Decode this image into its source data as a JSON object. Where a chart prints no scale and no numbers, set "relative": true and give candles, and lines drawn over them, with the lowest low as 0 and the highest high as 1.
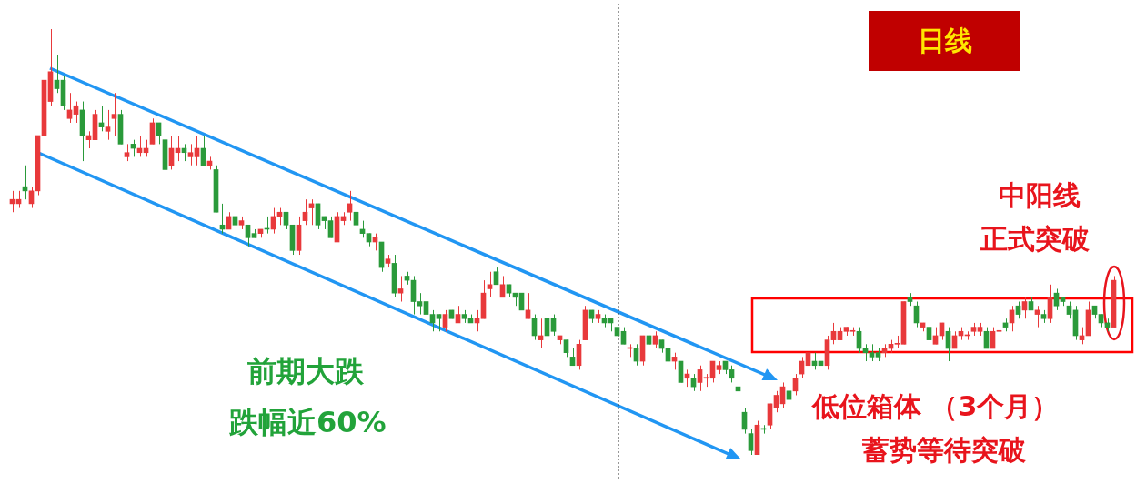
{
  "chart_data": {
    "type": "candlestick",
    "relative": true,
    "categories": [
      null,
      null,
      null,
      null,
      null,
      null,
      null,
      null,
      null,
      null,
      null,
      null,
      null,
      null,
      null,
      null,
      null,
      null,
      null,
      null,
      null,
      null,
      null,
      null,
      null,
      null,
      null,
      null,
      null,
      null,
      null,
      null,
      null,
      null,
      null,
      null,
      null,
      null,
      null,
      null,
      null,
      null,
      null,
      null,
      null,
      null,
      null,
      null,
      null,
      null,
      null,
      null,
      null,
      null,
      null,
      null,
      null,
      null,
      null,
      null,
      null,
      null,
      null,
      null,
      null,
      null,
      null,
      null,
      null,
      null,
      null,
      null,
      null,
      null,
      null,
      null,
      null,
      null,
      null,
      null,
      null,
      null,
      null,
      null,
      null,
      null,
      null,
      null,
      null,
      null,
      null,
      null,
      null,
      null,
      null,
      null,
      null,
      null,
      null,
      null,
      null,
      null,
      null,
      null,
      null,
      null,
      null,
      null,
      null,
      null,
      null,
      null,
      null,
      null,
      null,
      null,
      null,
      null,
      null,
      null,
      null,
      null,
      null,
      null,
      null,
      null,
      null,
      null,
      null,
      null,
      null,
      null,
      null,
      null,
      null,
      null,
      null,
      null,
      null,
      null,
      null,
      null,
      null,
      null,
      null,
      null,
      null,
      null,
      null,
      null,
      null,
      null,
      null,
      null,
      null,
      null,
      null,
      null,
      null,
      null,
      null,
      null,
      null,
      null,
      null,
      null,
      null,
      null,
      null,
      null,
      null,
      null,
      null,
      null
    ],
    "ohlc": [
      [
        0.59,
        0.62,
        0.57,
        0.6
      ],
      [
        0.59,
        0.62,
        0.58,
        0.6
      ],
      [
        0.63,
        0.68,
        0.6,
        0.62
      ],
      [
        0.59,
        0.63,
        0.58,
        0.62
      ],
      [
        0.62,
        0.75,
        0.61,
        0.75
      ],
      [
        0.75,
        0.89,
        0.74,
        0.88
      ],
      [
        0.83,
        1.0,
        0.82,
        0.9
      ],
      [
        0.88,
        0.94,
        0.85,
        0.86
      ],
      [
        0.88,
        0.89,
        0.81,
        0.82
      ],
      [
        0.79,
        0.85,
        0.78,
        0.81
      ],
      [
        0.8,
        0.83,
        0.78,
        0.82
      ],
      [
        0.81,
        0.83,
        0.69,
        0.75
      ],
      [
        0.74,
        0.76,
        0.72,
        0.75
      ],
      [
        0.74,
        0.81,
        0.74,
        0.8
      ],
      [
        0.78,
        0.82,
        0.76,
        0.77
      ],
      [
        0.76,
        0.81,
        0.74,
        0.77
      ],
      [
        0.79,
        0.85,
        0.75,
        0.8
      ],
      [
        0.8,
        0.81,
        0.73,
        0.73
      ],
      [
        0.7,
        0.73,
        0.69,
        0.71
      ],
      [
        0.73,
        0.74,
        0.7,
        0.72
      ],
      [
        0.71,
        0.75,
        0.7,
        0.72
      ],
      [
        0.71,
        0.74,
        0.7,
        0.72
      ],
      [
        0.73,
        0.79,
        0.73,
        0.78
      ],
      [
        0.78,
        0.78,
        0.73,
        0.75
      ],
      [
        0.74,
        0.74,
        0.65,
        0.67
      ],
      [
        0.68,
        0.75,
        0.67,
        0.72
      ],
      [
        0.71,
        0.75,
        0.69,
        0.72
      ],
      [
        0.72,
        0.73,
        0.69,
        0.71
      ],
      [
        0.7,
        0.73,
        0.68,
        0.71
      ],
      [
        0.7,
        0.75,
        0.68,
        0.72
      ],
      [
        0.72,
        0.75,
        0.68,
        0.68
      ],
      [
        0.68,
        0.7,
        0.67,
        0.69
      ],
      [
        0.67,
        0.68,
        0.57,
        0.57
      ],
      [
        0.54,
        0.59,
        0.52,
        0.53
      ],
      [
        0.53,
        0.57,
        0.53,
        0.56
      ],
      [
        0.56,
        0.57,
        0.53,
        0.54
      ],
      [
        0.54,
        0.56,
        0.53,
        0.55
      ],
      [
        0.54,
        0.54,
        0.49,
        0.51
      ],
      [
        0.52,
        0.53,
        0.51,
        0.51
      ],
      [
        0.52,
        0.53,
        0.51,
        0.53
      ],
      [
        0.53,
        0.56,
        0.52,
        0.53
      ],
      [
        0.53,
        0.58,
        0.52,
        0.56
      ],
      [
        0.56,
        0.58,
        0.54,
        0.57
      ],
      [
        0.57,
        0.57,
        0.53,
        0.54
      ],
      [
        0.54,
        0.54,
        0.47,
        0.48
      ],
      [
        0.48,
        0.56,
        0.47,
        0.54
      ],
      [
        0.55,
        0.6,
        0.54,
        0.57
      ],
      [
        0.58,
        0.6,
        0.54,
        0.59
      ],
      [
        0.59,
        0.59,
        0.53,
        0.54
      ],
      [
        0.56,
        0.56,
        0.53,
        0.55
      ],
      [
        0.55,
        0.56,
        0.51,
        0.51
      ],
      [
        0.5,
        0.57,
        0.5,
        0.56
      ],
      [
        0.55,
        0.57,
        0.54,
        0.56
      ],
      [
        0.57,
        0.62,
        0.55,
        0.59
      ],
      [
        0.57,
        0.58,
        0.53,
        0.54
      ],
      [
        0.53,
        0.55,
        0.51,
        0.52
      ],
      [
        0.52,
        0.52,
        0.49,
        0.5
      ],
      [
        0.5,
        0.52,
        0.48,
        0.51
      ],
      [
        0.5,
        0.5,
        0.43,
        0.44
      ],
      [
        0.45,
        0.47,
        0.44,
        0.46
      ],
      [
        0.45,
        0.47,
        0.37,
        0.38
      ],
      [
        0.38,
        0.42,
        0.36,
        0.39
      ],
      [
        0.42,
        0.43,
        0.4,
        0.41
      ],
      [
        0.41,
        0.42,
        0.33,
        0.36
      ],
      [
        0.36,
        0.38,
        0.33,
        0.35
      ],
      [
        0.36,
        0.36,
        0.32,
        0.33
      ],
      [
        0.33,
        0.34,
        0.29,
        0.31
      ],
      [
        0.33,
        0.33,
        0.29,
        0.32
      ],
      [
        0.3,
        0.34,
        0.29,
        0.33
      ],
      [
        0.34,
        0.34,
        0.32,
        0.32
      ],
      [
        0.31,
        0.35,
        0.31,
        0.33
      ],
      [
        0.33,
        0.34,
        0.31,
        0.32
      ],
      [
        0.32,
        0.33,
        0.31,
        0.31
      ],
      [
        0.31,
        0.34,
        0.29,
        0.32
      ],
      [
        0.32,
        0.41,
        0.32,
        0.38
      ],
      [
        0.39,
        0.43,
        0.37,
        0.4
      ],
      [
        0.43,
        0.44,
        0.4,
        0.4
      ],
      [
        0.37,
        0.42,
        0.37,
        0.4
      ],
      [
        0.4,
        0.4,
        0.37,
        0.38
      ],
      [
        0.38,
        0.38,
        0.35,
        0.37
      ],
      [
        0.38,
        0.38,
        0.34,
        0.34
      ],
      [
        0.32,
        0.38,
        0.32,
        0.34
      ],
      [
        0.32,
        0.33,
        0.27,
        0.28
      ],
      [
        0.27,
        0.32,
        0.25,
        0.28
      ],
      [
        0.32,
        0.33,
        0.25,
        0.28
      ],
      [
        0.32,
        0.33,
        0.28,
        0.29
      ],
      [
        0.27,
        0.28,
        0.26,
        0.28
      ],
      [
        0.27,
        0.27,
        0.23,
        0.24
      ],
      [
        0.23,
        0.25,
        0.21,
        0.21
      ],
      [
        0.21,
        0.27,
        0.2,
        0.26
      ],
      [
        0.27,
        0.35,
        0.27,
        0.34
      ],
      [
        0.34,
        0.34,
        0.31,
        0.32
      ],
      [
        0.32,
        0.34,
        0.31,
        0.33
      ],
      [
        0.32,
        0.33,
        0.3,
        0.31
      ],
      [
        0.32,
        0.32,
        0.29,
        0.31
      ],
      [
        0.3,
        0.31,
        0.27,
        0.28
      ],
      [
        0.29,
        0.3,
        0.26,
        0.26
      ],
      [
        0.25,
        0.26,
        0.23,
        0.25
      ],
      [
        0.25,
        0.26,
        0.21,
        0.22
      ],
      [
        0.22,
        0.28,
        0.21,
        0.28
      ],
      [
        0.28,
        0.28,
        0.26,
        0.26
      ],
      [
        0.26,
        0.29,
        0.25,
        0.28
      ],
      [
        0.27,
        0.27,
        0.24,
        0.25
      ],
      [
        0.25,
        0.25,
        0.22,
        0.22
      ],
      [
        0.22,
        0.24,
        0.2,
        0.23
      ],
      [
        0.22,
        0.22,
        0.17,
        0.17
      ],
      [
        0.18,
        0.2,
        0.16,
        0.19
      ],
      [
        0.18,
        0.19,
        0.15,
        0.16
      ],
      [
        0.17,
        0.21,
        0.15,
        0.2
      ],
      [
        0.18,
        0.19,
        0.16,
        0.18
      ],
      [
        0.18,
        0.22,
        0.17,
        0.22
      ],
      [
        0.2,
        0.22,
        0.19,
        0.21
      ],
      [
        0.22,
        0.22,
        0.19,
        0.2
      ],
      [
        0.2,
        0.21,
        0.17,
        0.18
      ],
      [
        0.16,
        0.18,
        0.13,
        0.15
      ],
      [
        0.1,
        0.11,
        0.05,
        0.06
      ],
      [
        0.05,
        0.06,
        0.0,
        0.01
      ],
      [
        0.0,
        0.08,
        0.0,
        0.07
      ],
      [
        0.06,
        0.07,
        0.05,
        0.06
      ],
      [
        0.07,
        0.12,
        0.06,
        0.12
      ],
      [
        0.11,
        0.15,
        0.1,
        0.14
      ],
      [
        0.12,
        0.17,
        0.11,
        0.16
      ],
      [
        0.15,
        0.16,
        0.12,
        0.13
      ],
      [
        0.15,
        0.19,
        0.14,
        0.18
      ],
      [
        0.19,
        0.23,
        0.18,
        0.22
      ],
      [
        0.21,
        0.25,
        0.2,
        0.24
      ],
      [
        0.22,
        0.24,
        0.2,
        0.21
      ],
      [
        0.22,
        0.22,
        0.21,
        0.21
      ],
      [
        0.21,
        0.28,
        0.2,
        0.27
      ],
      [
        0.27,
        0.31,
        0.26,
        0.29
      ],
      [
        0.27,
        0.3,
        0.27,
        0.29
      ],
      [
        0.29,
        0.3,
        0.28,
        0.3
      ],
      [
        0.29,
        0.3,
        0.28,
        0.29
      ],
      [
        0.29,
        0.3,
        0.24,
        0.25
      ],
      [
        0.25,
        0.26,
        0.22,
        0.24
      ],
      [
        0.24,
        0.26,
        0.22,
        0.23
      ],
      [
        0.24,
        0.25,
        0.22,
        0.23
      ],
      [
        0.24,
        0.26,
        0.23,
        0.25
      ],
      [
        0.25,
        0.27,
        0.24,
        0.26
      ],
      [
        0.26,
        0.28,
        0.25,
        0.26
      ],
      [
        0.26,
        0.36,
        0.26,
        0.36
      ],
      [
        0.37,
        0.38,
        0.35,
        0.36
      ],
      [
        0.35,
        0.36,
        0.3,
        0.31
      ],
      [
        0.3,
        0.31,
        0.29,
        0.31
      ],
      [
        0.3,
        0.31,
        0.27,
        0.27
      ],
      [
        0.26,
        0.3,
        0.26,
        0.28
      ],
      [
        0.28,
        0.31,
        0.27,
        0.31
      ],
      [
        0.29,
        0.3,
        0.22,
        0.25
      ],
      [
        0.25,
        0.29,
        0.25,
        0.28
      ],
      [
        0.28,
        0.3,
        0.27,
        0.29
      ],
      [
        0.28,
        0.29,
        0.27,
        0.28
      ],
      [
        0.29,
        0.31,
        0.28,
        0.3
      ],
      [
        0.29,
        0.31,
        0.28,
        0.3
      ],
      [
        0.29,
        0.3,
        0.25,
        0.25
      ],
      [
        0.25,
        0.3,
        0.25,
        0.29
      ],
      [
        0.29,
        0.31,
        0.27,
        0.29
      ],
      [
        0.31,
        0.32,
        0.29,
        0.3
      ],
      [
        0.31,
        0.35,
        0.29,
        0.34
      ],
      [
        0.35,
        0.36,
        0.32,
        0.33
      ],
      [
        0.34,
        0.37,
        0.32,
        0.36
      ],
      [
        0.36,
        0.37,
        0.34,
        0.34
      ],
      [
        0.33,
        0.35,
        0.3,
        0.34
      ],
      [
        0.33,
        0.34,
        0.31,
        0.32
      ],
      [
        0.32,
        0.4,
        0.31,
        0.37
      ],
      [
        0.38,
        0.39,
        0.34,
        0.35
      ],
      [
        0.37,
        0.37,
        0.35,
        0.36
      ],
      [
        0.35,
        0.36,
        0.32,
        0.33
      ],
      [
        0.34,
        0.35,
        0.27,
        0.28
      ],
      [
        0.27,
        0.3,
        0.26,
        0.28
      ],
      [
        0.28,
        0.36,
        0.28,
        0.34
      ],
      [
        0.35,
        0.35,
        0.32,
        0.33
      ],
      [
        0.33,
        0.33,
        0.3,
        0.31
      ],
      [
        0.31,
        0.32,
        0.29,
        0.3
      ],
      [
        0.3,
        0.42,
        0.3,
        0.41
      ]
    ],
    "colors": [
      "#e8393b",
      "#e8393b",
      "#2a9a3a",
      "#e8393b",
      "#e8393b",
      "#e8393b",
      "#e8393b",
      "#2a9a3a",
      "#2a9a3a",
      "#e8393b",
      "#e8393b",
      "#2a9a3a",
      "#e8393b",
      "#e8393b",
      "#2a9a3a",
      "#e8393b",
      "#e8393b",
      "#2a9a3a",
      "#e8393b",
      "#2a9a3a",
      "#e8393b",
      "#e8393b",
      "#e8393b",
      "#2a9a3a",
      "#2a9a3a",
      "#e8393b",
      "#e8393b",
      "#2a9a3a",
      "#e8393b",
      "#e8393b",
      "#2a9a3a",
      "#e8393b",
      "#2a9a3a",
      "#2a9a3a",
      "#e8393b",
      "#2a9a3a",
      "#e8393b",
      "#2a9a3a",
      "#2a9a3a",
      "#e8393b",
      "#2a9a3a",
      "#e8393b",
      "#e8393b",
      "#2a9a3a",
      "#2a9a3a",
      "#e8393b",
      "#e8393b",
      "#e8393b",
      "#2a9a3a",
      "#2a9a3a",
      "#2a9a3a",
      "#e8393b",
      "#e8393b",
      "#e8393b",
      "#2a9a3a",
      "#2a9a3a",
      "#2a9a3a",
      "#e8393b",
      "#2a9a3a",
      "#e8393b",
      "#2a9a3a",
      "#e8393b",
      "#2a9a3a",
      "#2a9a3a",
      "#2a9a3a",
      "#2a9a3a",
      "#2a9a3a",
      "#2a9a3a",
      "#e8393b",
      "#2a9a3a",
      "#e8393b",
      "#2a9a3a",
      "#2a9a3a",
      "#e8393b",
      "#e8393b",
      "#e8393b",
      "#2a9a3a",
      "#e8393b",
      "#2a9a3a",
      "#2a9a3a",
      "#2a9a3a",
      "#e8393b",
      "#2a9a3a",
      "#e8393b",
      "#2a9a3a",
      "#2a9a3a",
      "#e8393b",
      "#2a9a3a",
      "#2a9a3a",
      "#e8393b",
      "#e8393b",
      "#2a9a3a",
      "#e8393b",
      "#2a9a3a",
      "#2a9a3a",
      "#2a9a3a",
      "#2a9a3a",
      "#e8393b",
      "#2a9a3a",
      "#e8393b",
      "#2a9a3a",
      "#e8393b",
      "#2a9a3a",
      "#2a9a3a",
      "#e8393b",
      "#2a9a3a",
      "#e8393b",
      "#2a9a3a",
      "#e8393b",
      "#e8393b",
      "#e8393b",
      "#e8393b",
      "#2a9a3a",
      "#2a9a3a",
      "#2a9a3a",
      "#2a9a3a",
      "#2a9a3a",
      "#e8393b",
      "#2a9a3a",
      "#e8393b",
      "#e8393b",
      "#e8393b",
      "#2a9a3a",
      "#e8393b",
      "#e8393b",
      "#e8393b",
      "#2a9a3a",
      "#2a9a3a",
      "#e8393b",
      "#e8393b",
      "#e8393b",
      "#e8393b",
      "#e8393b",
      "#2a9a3a",
      "#2a9a3a",
      "#2a9a3a",
      "#2a9a3a",
      "#e8393b",
      "#e8393b",
      "#e8393b",
      "#e8393b",
      "#2a9a3a",
      "#2a9a3a",
      "#e8393b",
      "#2a9a3a",
      "#e8393b",
      "#e8393b",
      "#2a9a3a",
      "#e8393b",
      "#e8393b",
      "#e8393b",
      "#e8393b",
      "#e8393b",
      "#2a9a3a",
      "#e8393b",
      "#e8393b",
      "#2a9a3a",
      "#e8393b",
      "#2a9a3a",
      "#e8393b",
      "#2a9a3a",
      "#e8393b",
      "#2a9a3a",
      "#e8393b",
      "#2a9a3a",
      "#2a9a3a",
      "#2a9a3a",
      "#2a9a3a",
      "#e8393b",
      "#e8393b",
      "#2a9a3a",
      "#2a9a3a",
      "#2a9a3a",
      "#e8393b"
    ],
    "annotations": [
      "日线",
      "中阳线",
      "正式突破",
      "前期大跌",
      "跌幅近60%",
      "低位箱体 （3个月）",
      "蓄势等待突破"
    ]
  }
}
